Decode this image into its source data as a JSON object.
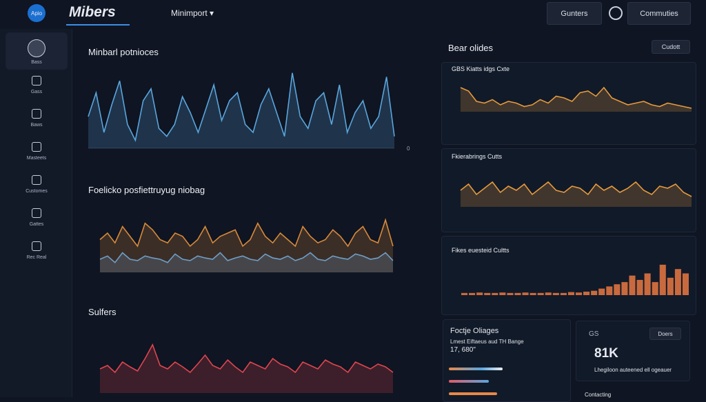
{
  "header": {
    "logo": "Apio",
    "title": "Mibers",
    "menu": "Minimport",
    "buttons": [
      "Gunters",
      "Commuties"
    ]
  },
  "sidebar": [
    "Bass",
    "Gass",
    "Baws",
    "Masteets",
    "Customes",
    "Gattes",
    "Rec Real"
  ],
  "main": {
    "charts": [
      {
        "type": "line",
        "title": "Minbarl potnioces",
        "ylim": [
          0,
          100
        ],
        "yticks": [
          0
        ],
        "series": [
          {
            "color": "#5aa6de",
            "values": [
              40,
              70,
              20,
              55,
              85,
              30,
              10,
              60,
              75,
              25,
              15,
              30,
              65,
              45,
              20,
              50,
              80,
              35,
              60,
              70,
              30,
              20,
              55,
              75,
              45,
              15,
              95,
              40,
              25,
              60,
              70,
              30,
              80,
              20,
              45,
              60,
              25,
              40,
              90,
              15
            ]
          }
        ]
      },
      {
        "type": "line",
        "title": "Foelicko posfiettruyug niobag",
        "ylim": [
          0,
          100
        ],
        "series": [
          {
            "color": "#d98a3a",
            "values": [
              50,
              60,
              45,
              70,
              55,
              40,
              75,
              65,
              50,
              45,
              60,
              55,
              40,
              50,
              70,
              45,
              55,
              60,
              65,
              40,
              50,
              75,
              55,
              45,
              60,
              50,
              40,
              70,
              55,
              45,
              50,
              65,
              55,
              40,
              60,
              70,
              50,
              45,
              80,
              40
            ]
          },
          {
            "color": "#6f9fc8",
            "values": [
              20,
              25,
              15,
              30,
              20,
              18,
              25,
              22,
              20,
              15,
              28,
              20,
              18,
              25,
              22,
              20,
              30,
              18,
              22,
              25,
              20,
              18,
              28,
              22,
              20,
              25,
              18,
              22,
              30,
              20,
              18,
              25,
              22,
              20,
              28,
              25,
              20,
              22,
              30,
              18
            ]
          }
        ]
      },
      {
        "type": "line",
        "title": "Sulfers",
        "ylim": [
          0,
          100
        ],
        "series": [
          {
            "color": "#e0454f",
            "values": [
              35,
              40,
              30,
              45,
              38,
              32,
              50,
              70,
              40,
              35,
              45,
              38,
              30,
              42,
              55,
              40,
              35,
              48,
              38,
              30,
              45,
              40,
              35,
              50,
              42,
              38,
              30,
              45,
              40,
              35,
              48,
              42,
              38,
              30,
              45,
              40,
              35,
              42,
              38,
              30
            ]
          }
        ]
      }
    ]
  },
  "side": {
    "title": "Bear olides",
    "button": "Cudott",
    "charts": [
      {
        "type": "line",
        "title": "GBS Kiatts idgs Cxte",
        "ylim": [
          0,
          100
        ],
        "series": [
          {
            "color": "#e89a3c",
            "values": [
              70,
              60,
              30,
              25,
              35,
              20,
              30,
              25,
              15,
              20,
              35,
              25,
              45,
              40,
              30,
              55,
              60,
              45,
              70,
              40,
              30,
              20,
              25,
              30,
              20,
              15,
              25,
              20,
              15,
              10
            ]
          }
        ]
      },
      {
        "type": "line",
        "title": "Fkierabrings Cutts",
        "ylim": [
          0,
          100
        ],
        "series": [
          {
            "color": "#e89a3c",
            "values": [
              40,
              55,
              30,
              45,
              60,
              35,
              50,
              40,
              55,
              30,
              45,
              60,
              40,
              35,
              50,
              45,
              30,
              55,
              40,
              50,
              35,
              45,
              60,
              40,
              30,
              50,
              45,
              55,
              35,
              25
            ]
          }
        ]
      },
      {
        "type": "bar",
        "title": "Fikes euesteid Cultts",
        "ylim": [
          0,
          100
        ],
        "series": [
          {
            "color": "#c96a3e",
            "values": [
              5,
              5,
              6,
              5,
              5,
              6,
              5,
              5,
              6,
              5,
              5,
              6,
              5,
              5,
              7,
              6,
              8,
              10,
              15,
              20,
              25,
              30,
              45,
              35,
              50,
              30,
              70,
              40,
              60,
              50
            ]
          }
        ]
      }
    ]
  },
  "cards": [
    {
      "title": "Foctje Oliages",
      "subtitle": "Lmest Eiftaeus aud TH Bange",
      "value": "17, 680\""
    },
    {
      "title": "GS",
      "value": "81K",
      "caption": "Lhegiloon auteened ell ogeauer",
      "button": "Doers",
      "footer": "Contacting"
    }
  ]
}
